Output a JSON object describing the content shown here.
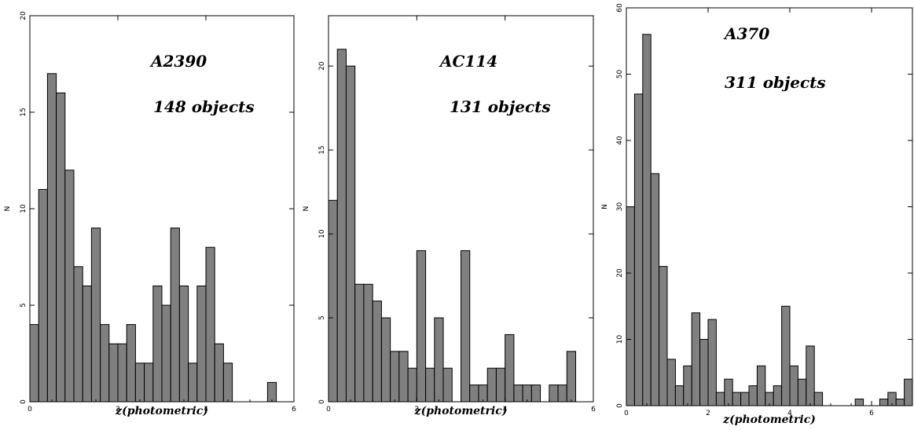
{
  "chart_data": [
    {
      "type": "bar",
      "xlabel": "z(photometric)",
      "ylabel": "N",
      "xlim": [
        0,
        6
      ],
      "ylim": [
        0,
        20
      ],
      "bin_width": 0.2,
      "x_ticks": [
        0,
        2,
        4,
        6
      ],
      "y_ticks": [
        0,
        5,
        10,
        15,
        20
      ],
      "annotations": [
        "A2390",
        "148 objects"
      ],
      "values": [
        4,
        11,
        17,
        16,
        12,
        7,
        6,
        9,
        4,
        3,
        3,
        4,
        2,
        2,
        6,
        5,
        9,
        6,
        2,
        6,
        8,
        3,
        2,
        0,
        0,
        0,
        0,
        1,
        0,
        0
      ]
    },
    {
      "type": "bar",
      "xlabel": "z(photometric)",
      "ylabel": "N",
      "xlim": [
        0,
        6
      ],
      "ylim": [
        0,
        23
      ],
      "bin_width": 0.2,
      "x_ticks": [
        0,
        2,
        4,
        6
      ],
      "y_ticks": [
        0,
        5,
        10,
        15,
        20
      ],
      "annotations": [
        "AC114",
        "131 objects"
      ],
      "values": [
        12,
        21,
        20,
        7,
        7,
        6,
        5,
        3,
        3,
        2,
        9,
        2,
        5,
        2,
        0,
        9,
        1,
        1,
        2,
        2,
        4,
        1,
        1,
        1,
        0,
        1,
        1,
        3,
        0,
        0
      ]
    },
    {
      "type": "bar",
      "xlabel": "z(photometric)",
      "ylabel": "N",
      "xlim": [
        0,
        7
      ],
      "ylim": [
        0,
        60
      ],
      "bin_width": 0.2,
      "x_ticks": [
        0,
        2,
        4,
        6
      ],
      "y_ticks": [
        0,
        10,
        20,
        30,
        40,
        50,
        60
      ],
      "annotations": [
        "A370",
        "311 objects"
      ],
      "values": [
        30,
        47,
        56,
        35,
        21,
        7,
        3,
        6,
        14,
        10,
        13,
        2,
        4,
        2,
        2,
        3,
        6,
        2,
        3,
        15,
        6,
        4,
        9,
        2,
        0,
        0,
        0,
        0,
        1,
        0,
        0,
        1,
        2,
        1,
        4
      ]
    }
  ]
}
